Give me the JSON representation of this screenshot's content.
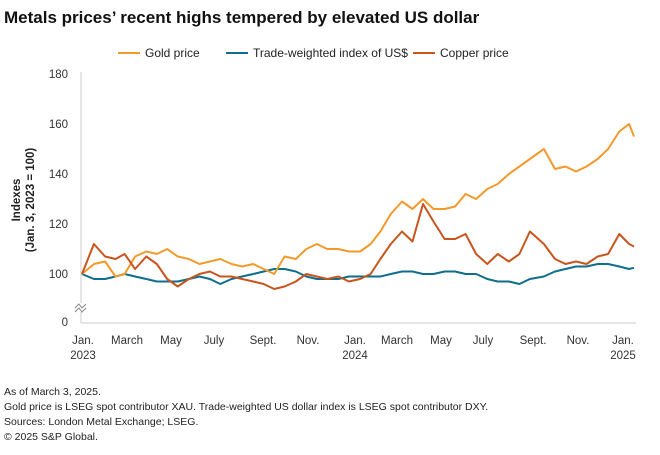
{
  "chart_data": {
    "type": "line",
    "title": "Metals prices’ recent highs tempered by elevated US dollar",
    "ylabel_line1": "Indexes",
    "ylabel_line2": "(Jan. 3, 2023 = 100)",
    "ylim": [
      0,
      180
    ],
    "axis_break": true,
    "yticks": [
      "0",
      "100",
      "120",
      "140",
      "160",
      "180"
    ],
    "xticks": [
      {
        "month": "Jan.",
        "year": "2023"
      },
      {
        "month": "March",
        "year": ""
      },
      {
        "month": "May",
        "year": ""
      },
      {
        "month": "July",
        "year": ""
      },
      {
        "month": "Sept.",
        "year": ""
      },
      {
        "month": "Nov.",
        "year": ""
      },
      {
        "month": "Jan.",
        "year": "2024"
      },
      {
        "month": "March",
        "year": ""
      },
      {
        "month": "May",
        "year": ""
      },
      {
        "month": "July",
        "year": ""
      },
      {
        "month": "Sept.",
        "year": ""
      },
      {
        "month": "Nov.",
        "year": ""
      },
      {
        "month": "Jan.",
        "year": "2025"
      }
    ],
    "grid": false,
    "legend_position": "top",
    "x": [
      "2023-01-03",
      "2023-01-20",
      "2023-02-05",
      "2023-02-20",
      "2023-03-05",
      "2023-03-20",
      "2023-04-05",
      "2023-04-20",
      "2023-05-05",
      "2023-05-20",
      "2023-06-05",
      "2023-06-20",
      "2023-07-05",
      "2023-07-20",
      "2023-08-05",
      "2023-08-20",
      "2023-09-05",
      "2023-09-20",
      "2023-10-05",
      "2023-10-20",
      "2023-11-05",
      "2023-11-20",
      "2023-12-05",
      "2023-12-20",
      "2024-01-05",
      "2024-01-20",
      "2024-02-05",
      "2024-02-20",
      "2024-03-05",
      "2024-03-20",
      "2024-04-05",
      "2024-04-20",
      "2024-05-05",
      "2024-05-20",
      "2024-06-05",
      "2024-06-20",
      "2024-07-05",
      "2024-07-20",
      "2024-08-05",
      "2024-08-20",
      "2024-09-05",
      "2024-09-20",
      "2024-10-05",
      "2024-10-25",
      "2024-11-10",
      "2024-11-25",
      "2024-12-10",
      "2024-12-25",
      "2025-01-10",
      "2025-01-25",
      "2025-02-10",
      "2025-02-24",
      "2025-03-03"
    ],
    "series": [
      {
        "name": "Gold price",
        "color": "#F39A2C",
        "values": [
          100,
          104,
          105,
          99,
          100,
          107,
          109,
          108,
          110,
          107,
          106,
          104,
          105,
          106,
          104,
          103,
          104,
          102,
          100,
          107,
          106,
          110,
          112,
          110,
          110,
          109,
          109,
          112,
          117,
          124,
          129,
          126,
          130,
          126,
          126,
          127,
          132,
          130,
          134,
          136,
          140,
          143,
          146,
          150,
          142,
          143,
          141,
          143,
          146,
          150,
          157,
          160,
          155
        ]
      },
      {
        "name": "Trade-weighted index of US$",
        "color": "#0E6E8C",
        "values": [
          100,
          98,
          98,
          99,
          100,
          99,
          98,
          97,
          97,
          97,
          98,
          99,
          98,
          96,
          98,
          99,
          100,
          101,
          102,
          102,
          101,
          99,
          98,
          98,
          98,
          99,
          99,
          99,
          99,
          100,
          101,
          101,
          100,
          100,
          101,
          101,
          100,
          100,
          98,
          97,
          97,
          96,
          98,
          99,
          101,
          102,
          103,
          103,
          104,
          104,
          103,
          102,
          102.5
        ]
      },
      {
        "name": "Copper price",
        "color": "#C8551E",
        "values": [
          100,
          112,
          107,
          106,
          108,
          102,
          107,
          104,
          98,
          95,
          98,
          100,
          101,
          99,
          99,
          98,
          97,
          96,
          94,
          95,
          97,
          100,
          99,
          98,
          99,
          97,
          98,
          100,
          106,
          112,
          117,
          113,
          128,
          121,
          114,
          114,
          116,
          108,
          104,
          108,
          105,
          108,
          117,
          112,
          106,
          104,
          105,
          104,
          107,
          108,
          116,
          112,
          111
        ]
      }
    ]
  },
  "notes": [
    "As of March 3, 2025.",
    "Gold price is LSEG spot contributor XAU. Trade-weighted US dollar index is LSEG spot contributor DXY.",
    "Sources: London Metal Exchange; LSEG.",
    "© 2025 S&P Global."
  ]
}
